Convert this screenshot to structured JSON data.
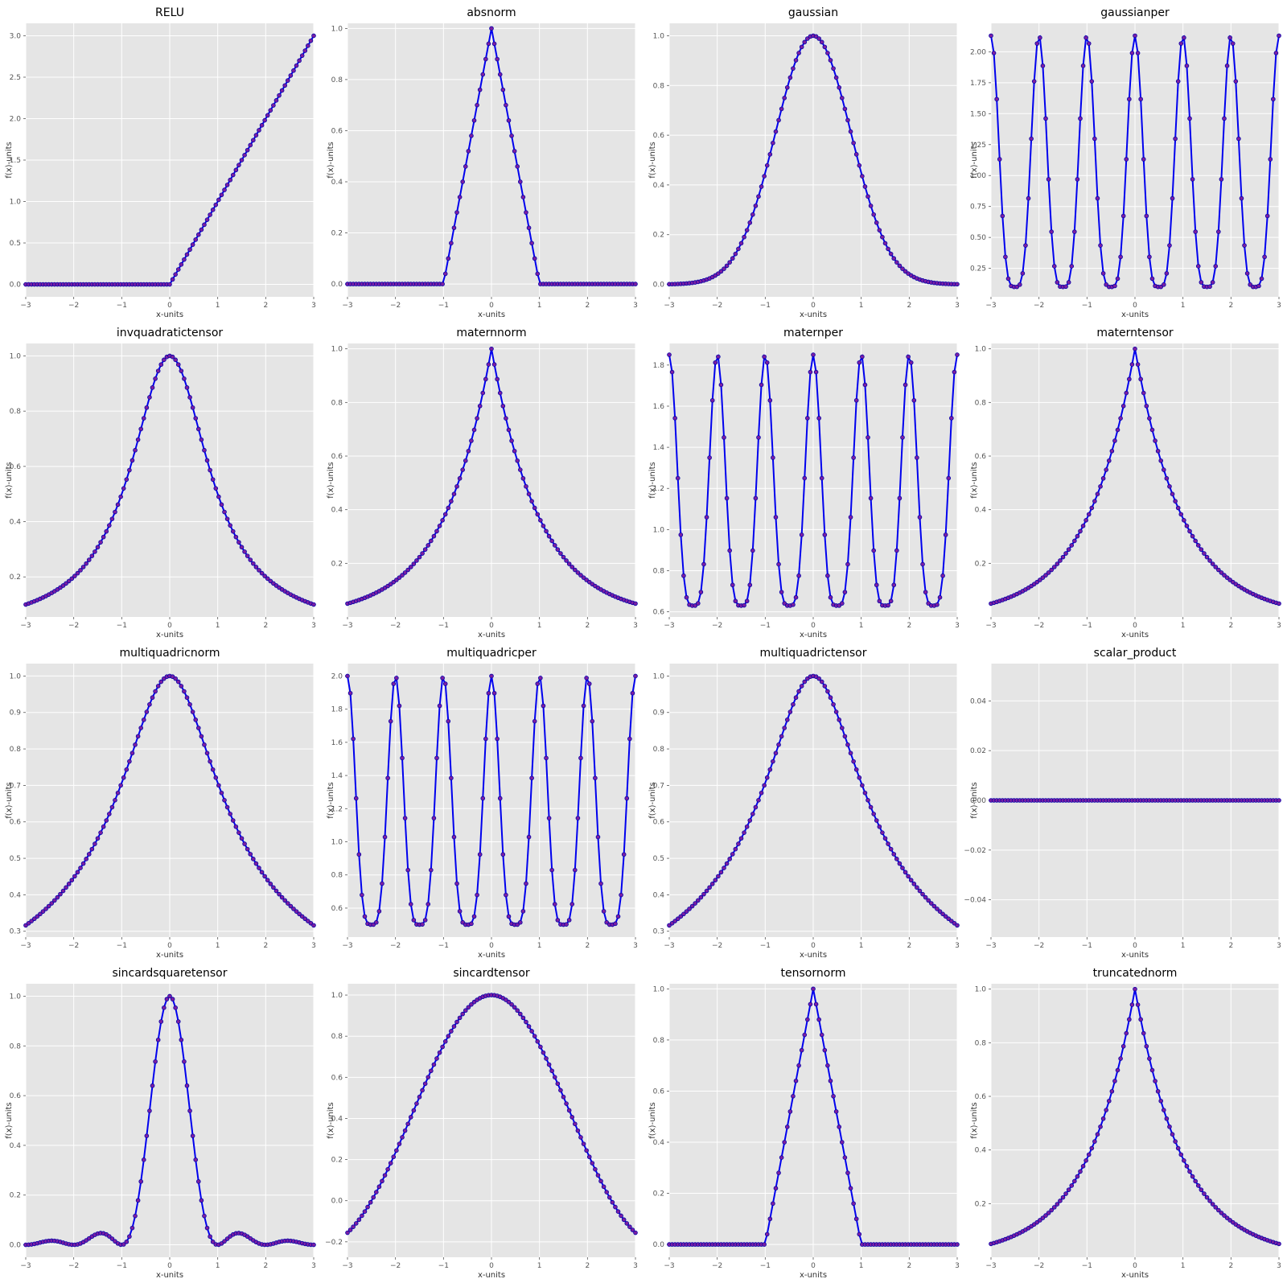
{
  "figure": {
    "background": "#ffffff",
    "axes_background": "#e5e5e5",
    "grid_color": "#ffffff",
    "line_color": "#0000ee",
    "marker_face": "#7b1fa2",
    "marker_edge": "#0000aa"
  },
  "chart_data": [
    {
      "type": "line",
      "title": "RELU",
      "xlabel": "x-units",
      "ylabel": "f(x)-units",
      "function": "relu",
      "samples": 101,
      "xlim": [
        -3,
        3
      ],
      "ylim": [
        -0.15,
        3.15
      ],
      "xticks": [
        -3,
        -2,
        -1,
        0,
        1,
        2,
        3
      ],
      "yticks": [
        0.0,
        0.5,
        1.0,
        1.5,
        2.0,
        2.5,
        3.0
      ],
      "ytick_labels": [
        "0.0",
        "0.5",
        "1.0",
        "1.5",
        "2.0",
        "2.5",
        "3.0"
      ],
      "grid": true
    },
    {
      "type": "line",
      "title": "absnorm",
      "xlabel": "x-units",
      "ylabel": "f(x)-units",
      "function": "tent",
      "samples": 101,
      "xlim": [
        -3,
        3
      ],
      "ylim": [
        -0.05,
        1.02
      ],
      "xticks": [
        -3,
        -2,
        -1,
        0,
        1,
        2,
        3
      ],
      "yticks": [
        0.0,
        0.2,
        0.4,
        0.6,
        0.8,
        1.0
      ],
      "ytick_labels": [
        "0.0",
        "0.2",
        "0.4",
        "0.6",
        "0.8",
        "1.0"
      ],
      "grid": true
    },
    {
      "type": "line",
      "title": "gaussian",
      "xlabel": "x-units",
      "ylabel": "f(x)-units",
      "function": "gaussian",
      "samples": 101,
      "xlim": [
        -3,
        3
      ],
      "ylim": [
        -0.05,
        1.05
      ],
      "xticks": [
        -3,
        -2,
        -1,
        0,
        1,
        2,
        3
      ],
      "yticks": [
        0.0,
        0.2,
        0.4,
        0.6,
        0.8,
        1.0
      ],
      "ytick_labels": [
        "0.0",
        "0.2",
        "0.4",
        "0.6",
        "0.8",
        "1.0"
      ],
      "grid": true
    },
    {
      "type": "line",
      "title": "gaussianper",
      "xlabel": "x-units",
      "ylabel": "f(x)-units",
      "function": "gaussianper",
      "samples": 101,
      "xlim": [
        -3,
        3
      ],
      "ylim": [
        0.02,
        2.23
      ],
      "xticks": [
        -3,
        -2,
        -1,
        0,
        1,
        2,
        3
      ],
      "yticks": [
        0.25,
        0.5,
        0.75,
        1.0,
        1.25,
        1.5,
        1.75,
        2.0
      ],
      "ytick_labels": [
        "0.25",
        "0.50",
        "0.75",
        "1.00",
        "1.25",
        "1.50",
        "1.75",
        "2.00"
      ],
      "grid": true
    },
    {
      "type": "line",
      "title": "invquadratictensor",
      "xlabel": "x-units",
      "ylabel": "f(x)-units",
      "function": "invquad",
      "samples": 101,
      "xlim": [
        -3,
        3
      ],
      "ylim": [
        0.055,
        1.045
      ],
      "xticks": [
        -3,
        -2,
        -1,
        0,
        1,
        2,
        3
      ],
      "yticks": [
        0.2,
        0.4,
        0.6,
        0.8,
        1.0
      ],
      "ytick_labels": [
        "0.2",
        "0.4",
        "0.6",
        "0.8",
        "1.0"
      ],
      "grid": true
    },
    {
      "type": "line",
      "title": "maternnorm",
      "xlabel": "x-units",
      "ylabel": "f(x)-units",
      "function": "laplace",
      "samples": 101,
      "xlim": [
        -3,
        3
      ],
      "ylim": [
        0.0,
        1.02
      ],
      "xticks": [
        -3,
        -2,
        -1,
        0,
        1,
        2,
        3
      ],
      "yticks": [
        0.2,
        0.4,
        0.6,
        0.8,
        1.0
      ],
      "ytick_labels": [
        "0.2",
        "0.4",
        "0.6",
        "0.8",
        "1.0"
      ],
      "grid": true
    },
    {
      "type": "line",
      "title": "maternper",
      "xlabel": "x-units",
      "ylabel": "f(x)-units",
      "function": "maternper",
      "samples": 101,
      "xlim": [
        -3,
        3
      ],
      "ylim": [
        0.575,
        1.905
      ],
      "xticks": [
        -3,
        -2,
        -1,
        0,
        1,
        2,
        3
      ],
      "yticks": [
        0.6,
        0.8,
        1.0,
        1.2,
        1.4,
        1.6,
        1.8
      ],
      "ytick_labels": [
        "0.6",
        "0.8",
        "1.0",
        "1.2",
        "1.4",
        "1.6",
        "1.8"
      ],
      "grid": true
    },
    {
      "type": "line",
      "title": "materntensor",
      "xlabel": "x-units",
      "ylabel": "f(x)-units",
      "function": "laplace",
      "samples": 101,
      "xlim": [
        -3,
        3
      ],
      "ylim": [
        0.0,
        1.02
      ],
      "xticks": [
        -3,
        -2,
        -1,
        0,
        1,
        2,
        3
      ],
      "yticks": [
        0.2,
        0.4,
        0.6,
        0.8,
        1.0
      ],
      "ytick_labels": [
        "0.2",
        "0.4",
        "0.6",
        "0.8",
        "1.0"
      ],
      "grid": true
    },
    {
      "type": "line",
      "title": "multiquadricnorm",
      "xlabel": "x-units",
      "ylabel": "f(x)-units",
      "function": "multiquadric",
      "samples": 101,
      "xlim": [
        -3,
        3
      ],
      "ylim": [
        0.284,
        1.034
      ],
      "xticks": [
        -3,
        -2,
        -1,
        0,
        1,
        2,
        3
      ],
      "yticks": [
        0.3,
        0.4,
        0.5,
        0.6,
        0.7,
        0.8,
        0.9,
        1.0
      ],
      "ytick_labels": [
        "0.3",
        "0.4",
        "0.5",
        "0.6",
        "0.7",
        "0.8",
        "0.9",
        "1.0"
      ],
      "grid": true
    },
    {
      "type": "line",
      "title": "multiquadricper",
      "xlabel": "x-units",
      "ylabel": "f(x)-units",
      "function": "multiquadricper",
      "samples": 101,
      "xlim": [
        -3,
        3
      ],
      "ylim": [
        0.425,
        2.075
      ],
      "xticks": [
        -3,
        -2,
        -1,
        0,
        1,
        2,
        3
      ],
      "yticks": [
        0.6,
        0.8,
        1.0,
        1.2,
        1.4,
        1.6,
        1.8,
        2.0
      ],
      "ytick_labels": [
        "0.6",
        "0.8",
        "1.0",
        "1.2",
        "1.4",
        "1.6",
        "1.8",
        "2.0"
      ],
      "grid": true
    },
    {
      "type": "line",
      "title": "multiquadrictensor",
      "xlabel": "x-units",
      "ylabel": "f(x)-units",
      "function": "multiquadric",
      "samples": 101,
      "xlim": [
        -3,
        3
      ],
      "ylim": [
        0.284,
        1.034
      ],
      "xticks": [
        -3,
        -2,
        -1,
        0,
        1,
        2,
        3
      ],
      "yticks": [
        0.3,
        0.4,
        0.5,
        0.6,
        0.7,
        0.8,
        0.9,
        1.0
      ],
      "ytick_labels": [
        "0.3",
        "0.4",
        "0.5",
        "0.6",
        "0.7",
        "0.8",
        "0.9",
        "1.0"
      ],
      "grid": true
    },
    {
      "type": "line",
      "title": "scalar_product",
      "xlabel": "x-units",
      "ylabel": "f(x)-units",
      "function": "zero",
      "samples": 101,
      "xlim": [
        -3,
        3
      ],
      "ylim": [
        -0.055,
        0.055
      ],
      "xticks": [
        -3,
        -2,
        -1,
        0,
        1,
        2,
        3
      ],
      "yticks": [
        -0.04,
        -0.02,
        0.0,
        0.02,
        0.04
      ],
      "ytick_labels": [
        "−0.04",
        "−0.02",
        "0.00",
        "0.02",
        "0.04"
      ],
      "grid": true
    },
    {
      "type": "line",
      "title": "sincardsquaretensor",
      "xlabel": "x-units",
      "ylabel": "f(x)-units",
      "function": "sinc2",
      "samples": 101,
      "xlim": [
        -3,
        3
      ],
      "ylim": [
        -0.05,
        1.05
      ],
      "xticks": [
        -3,
        -2,
        -1,
        0,
        1,
        2,
        3
      ],
      "yticks": [
        0.0,
        0.2,
        0.4,
        0.6,
        0.8,
        1.0
      ],
      "ytick_labels": [
        "0.0",
        "0.2",
        "0.4",
        "0.6",
        "0.8",
        "1.0"
      ],
      "grid": true
    },
    {
      "type": "line",
      "title": "sincardtensor",
      "xlabel": "x-units",
      "ylabel": "f(x)-units",
      "function": "sinc",
      "samples": 101,
      "xlim": [
        -3,
        3
      ],
      "ylim": [
        -0.275,
        1.055
      ],
      "xticks": [
        -3,
        -2,
        -1,
        0,
        1,
        2,
        3
      ],
      "yticks": [
        -0.2,
        0.0,
        0.2,
        0.4,
        0.6,
        0.8,
        1.0
      ],
      "ytick_labels": [
        "−0.2",
        "0.0",
        "0.2",
        "0.4",
        "0.6",
        "0.8",
        "1.0"
      ],
      "grid": true
    },
    {
      "type": "line",
      "title": "tensornorm",
      "xlabel": "x-units",
      "ylabel": "f(x)-units",
      "function": "tent",
      "samples": 101,
      "xlim": [
        -3,
        3
      ],
      "ylim": [
        -0.05,
        1.02
      ],
      "xticks": [
        -3,
        -2,
        -1,
        0,
        1,
        2,
        3
      ],
      "yticks": [
        0.0,
        0.2,
        0.4,
        0.6,
        0.8,
        1.0
      ],
      "ytick_labels": [
        "0.0",
        "0.2",
        "0.4",
        "0.6",
        "0.8",
        "1.0"
      ],
      "grid": true
    },
    {
      "type": "line",
      "title": "truncatednorm",
      "xlabel": "x-units",
      "ylabel": "f(x)-units",
      "function": "laplace",
      "samples": 101,
      "xlim": [
        -3,
        3
      ],
      "ylim": [
        0.0,
        1.02
      ],
      "xticks": [
        -3,
        -2,
        -1,
        0,
        1,
        2,
        3
      ],
      "yticks": [
        0.2,
        0.4,
        0.6,
        0.8,
        1.0
      ],
      "ytick_labels": [
        "0.2",
        "0.4",
        "0.6",
        "0.8",
        "1.0"
      ],
      "grid": true
    }
  ]
}
